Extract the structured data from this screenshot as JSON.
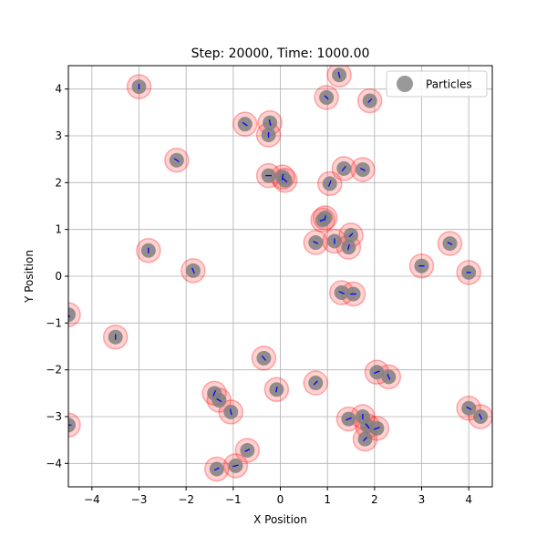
{
  "chart_data": {
    "type": "scatter",
    "title": "Step: 20000, Time: 1000.00",
    "xlabel": "X Position",
    "ylabel": "Y Position",
    "xlim": [
      -4.5,
      4.5
    ],
    "ylim": [
      -4.5,
      4.5
    ],
    "xticks": [
      -4,
      -3,
      -2,
      -1,
      0,
      1,
      2,
      3,
      4
    ],
    "yticks": [
      -4,
      -3,
      -2,
      -1,
      0,
      1,
      2,
      3,
      4
    ],
    "xtick_labels": [
      "−4",
      "−3",
      "−2",
      "−1",
      "0",
      "1",
      "2",
      "3",
      "4"
    ],
    "ytick_labels": [
      "−4",
      "−3",
      "−2",
      "−1",
      "0",
      "1",
      "2",
      "3",
      "4"
    ],
    "grid": true,
    "legend": {
      "placement": "top-right",
      "entries": [
        "Particles"
      ]
    },
    "colors": {
      "particle": "#808080",
      "halo": "#ff0000",
      "velocity": "#0000ff"
    },
    "series": [
      {
        "name": "Particles",
        "points": [
          [
            -3.0,
            4.05,
            0.0,
            0.12
          ],
          [
            1.25,
            4.3,
            0.03,
            -0.13
          ],
          [
            0.98,
            3.82,
            -0.08,
            0.08
          ],
          [
            1.9,
            3.75,
            -0.08,
            -0.08
          ],
          [
            -0.75,
            3.25,
            -0.1,
            0.07
          ],
          [
            -0.22,
            3.28,
            0.03,
            -0.13
          ],
          [
            -0.25,
            3.02,
            0.0,
            0.12
          ],
          [
            -2.2,
            2.48,
            0.1,
            -0.07
          ],
          [
            -0.25,
            2.15,
            0.13,
            0.0
          ],
          [
            0.05,
            2.12,
            0.02,
            0.13
          ],
          [
            0.1,
            2.05,
            -0.08,
            0.08
          ],
          [
            1.05,
            1.98,
            0.05,
            0.12
          ],
          [
            1.35,
            2.3,
            -0.08,
            -0.1
          ],
          [
            1.75,
            2.28,
            -0.1,
            0.05
          ],
          [
            0.9,
            1.2,
            0.12,
            0.04
          ],
          [
            0.95,
            1.25,
            0.03,
            0.1
          ],
          [
            0.75,
            0.72,
            0.1,
            -0.05
          ],
          [
            1.15,
            0.75,
            0.0,
            0.12
          ],
          [
            1.5,
            0.88,
            0.08,
            0.08
          ],
          [
            1.45,
            0.62,
            -0.03,
            -0.12
          ],
          [
            -2.8,
            0.55,
            0.0,
            0.12
          ],
          [
            -1.85,
            0.12,
            0.05,
            -0.12
          ],
          [
            3.0,
            0.22,
            0.12,
            0.0
          ],
          [
            3.6,
            0.7,
            0.1,
            -0.05
          ],
          [
            4.0,
            0.08,
            0.1,
            0.0
          ],
          [
            1.3,
            -0.35,
            -0.12,
            0.05
          ],
          [
            1.55,
            -0.38,
            0.13,
            0.0
          ],
          [
            -4.5,
            -0.82,
            -0.05,
            0.12
          ],
          [
            -3.5,
            -1.3,
            0.0,
            0.12
          ],
          [
            -0.35,
            -1.75,
            0.08,
            -0.1
          ],
          [
            -0.08,
            -2.42,
            0.03,
            0.12
          ],
          [
            0.75,
            -2.28,
            0.08,
            0.08
          ],
          [
            2.05,
            -2.05,
            0.12,
            0.05
          ],
          [
            2.3,
            -2.15,
            -0.05,
            0.12
          ],
          [
            -1.4,
            -2.5,
            0.05,
            0.12
          ],
          [
            -1.3,
            -2.65,
            -0.1,
            0.06
          ],
          [
            -1.05,
            -2.9,
            0.03,
            -0.13
          ],
          [
            1.45,
            -3.05,
            -0.12,
            -0.05
          ],
          [
            1.75,
            -3.0,
            0.0,
            0.12
          ],
          [
            1.85,
            -3.2,
            -0.08,
            0.1
          ],
          [
            2.05,
            -3.25,
            0.12,
            0.05
          ],
          [
            1.8,
            -3.48,
            -0.08,
            -0.08
          ],
          [
            4.0,
            -2.82,
            0.1,
            -0.05
          ],
          [
            4.25,
            -3.0,
            -0.05,
            0.12
          ],
          [
            -4.5,
            -3.18,
            0.13,
            0.0
          ],
          [
            -0.7,
            -3.72,
            -0.1,
            -0.05
          ],
          [
            -0.95,
            -4.05,
            0.12,
            0.03
          ],
          [
            -1.35,
            -4.12,
            0.1,
            0.05
          ]
        ]
      }
    ]
  }
}
